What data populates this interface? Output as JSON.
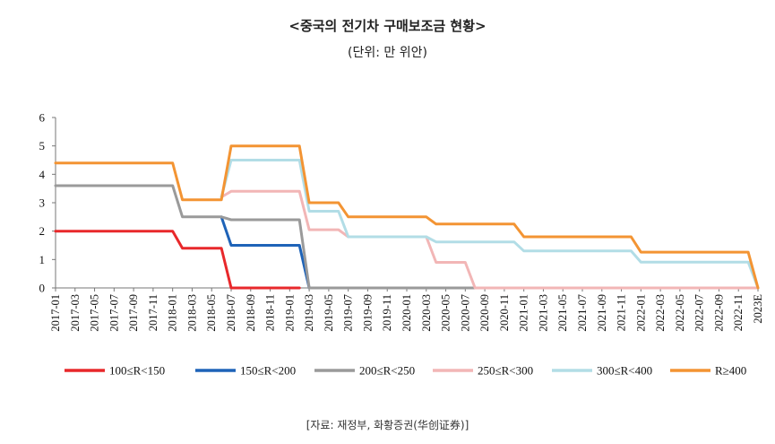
{
  "chart_data": {
    "type": "line",
    "title": "<중국의 전기차 구매보조금 현황>",
    "subtitle": "(단위: 만 위안)",
    "source": "[자료: 재정부, 화황증권(华创证券)]",
    "ylim": [
      0,
      6
    ],
    "yticks": [
      "0",
      "1",
      "2",
      "3",
      "4",
      "5",
      "6"
    ],
    "grid": false,
    "legend_position": "bottom",
    "x_labels": [
      "2017-01",
      "2017-03",
      "2017-05",
      "2017-07",
      "2017-09",
      "2017-11",
      "2018-01",
      "2018-03",
      "2018-05",
      "2018-07",
      "2018-09",
      "2018-11",
      "2019-01",
      "2019-03",
      "2019-05",
      "2019-07",
      "2019-09",
      "2019-11",
      "2020-01",
      "2020-03",
      "2020-05",
      "2020-07",
      "2020-09",
      "2020-11",
      "2021-01",
      "2021-03",
      "2021-05",
      "2021-07",
      "2021-09",
      "2021-11",
      "2022-01",
      "2022-03",
      "2022-05",
      "2022-07",
      "2022-09",
      "2022-11",
      "2023E"
    ],
    "series": [
      {
        "name": "100≤R<150",
        "color": "#e8282b",
        "points": [
          [
            0,
            2
          ],
          [
            12,
            2
          ],
          [
            13,
            1.4
          ],
          [
            17,
            1.4
          ],
          [
            18,
            0
          ],
          [
            25,
            0
          ]
        ]
      },
      {
        "name": "150≤R<200",
        "color": "#1e63b8",
        "points": [
          [
            17,
            2.5
          ],
          [
            18,
            1.5
          ],
          [
            25,
            1.5
          ],
          [
            26,
            0
          ]
        ]
      },
      {
        "name": "200≤R<250",
        "color": "#9a9a9a",
        "points": [
          [
            0,
            3.6
          ],
          [
            12,
            3.6
          ],
          [
            13,
            2.5
          ],
          [
            17,
            2.5
          ],
          [
            18,
            2.4
          ],
          [
            25,
            2.4
          ],
          [
            26,
            0
          ],
          [
            72,
            0
          ]
        ]
      },
      {
        "name": "250≤R<300",
        "color": "#f2b6b6",
        "points": [
          [
            17,
            3.2
          ],
          [
            18,
            3.4
          ],
          [
            25,
            3.4
          ],
          [
            26,
            2.05
          ],
          [
            29,
            2.05
          ],
          [
            30,
            1.8
          ],
          [
            38,
            1.8
          ],
          [
            39,
            0.9
          ],
          [
            42,
            0.9
          ],
          [
            43,
            0
          ],
          [
            72,
            0
          ]
        ]
      },
      {
        "name": "300≤R<400",
        "color": "#b2dde6",
        "points": [
          [
            17,
            3.2
          ],
          [
            18,
            4.5
          ],
          [
            25,
            4.5
          ],
          [
            26,
            2.7
          ],
          [
            29,
            2.7
          ],
          [
            30,
            1.8
          ],
          [
            38,
            1.8
          ],
          [
            39,
            1.62
          ],
          [
            47,
            1.62
          ],
          [
            48,
            1.3
          ],
          [
            59,
            1.3
          ],
          [
            60,
            0.91
          ],
          [
            71,
            0.91
          ],
          [
            72,
            0
          ]
        ]
      },
      {
        "name": "R≥400",
        "color": "#f39433",
        "points": [
          [
            0,
            4.4
          ],
          [
            12,
            4.4
          ],
          [
            13,
            3.1
          ],
          [
            17,
            3.1
          ],
          [
            18,
            5
          ],
          [
            25,
            5
          ],
          [
            26,
            3
          ],
          [
            29,
            3
          ],
          [
            30,
            2.5
          ],
          [
            38,
            2.5
          ],
          [
            39,
            2.25
          ],
          [
            47,
            2.25
          ],
          [
            48,
            1.8
          ],
          [
            59,
            1.8
          ],
          [
            60,
            1.26
          ],
          [
            71,
            1.26
          ],
          [
            72,
            0
          ]
        ]
      }
    ]
  }
}
